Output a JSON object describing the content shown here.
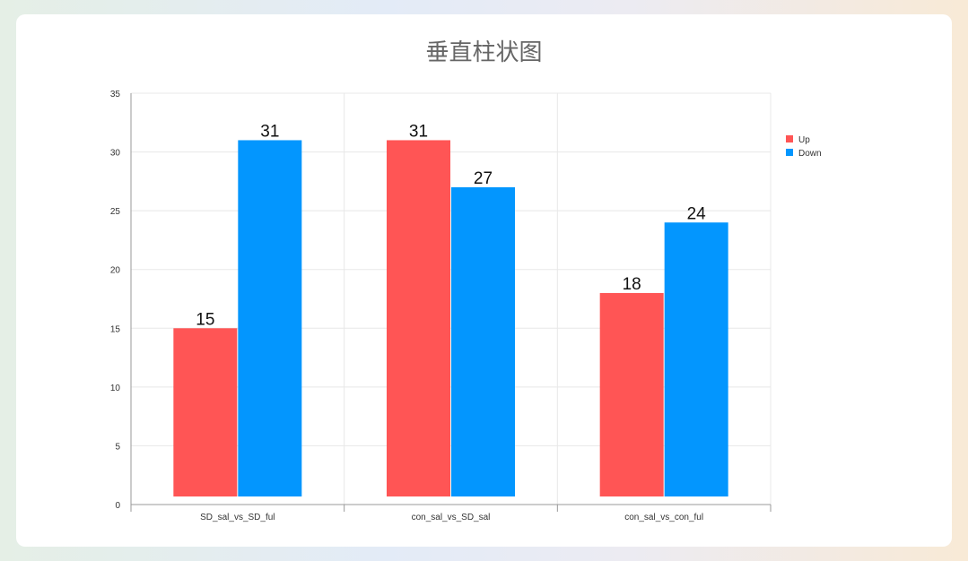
{
  "chart_data": {
    "type": "bar",
    "title": "垂直柱状图",
    "categories": [
      "SD_sal_vs_SD_ful",
      "con_sal_vs_SD_sal",
      "con_sal_vs_con_ful"
    ],
    "series": [
      {
        "name": "Up",
        "values": [
          15,
          31,
          18
        ]
      },
      {
        "name": "Down",
        "values": [
          31,
          27,
          24
        ]
      }
    ],
    "ylim": [
      0,
      35
    ],
    "yticks": [
      0,
      5,
      10,
      15,
      20,
      25,
      30,
      35
    ],
    "xlabel": "",
    "ylabel": "",
    "grid": true,
    "legend_position": "right",
    "colors": {
      "Up": "#ff5555",
      "Down": "#0396fe"
    }
  }
}
